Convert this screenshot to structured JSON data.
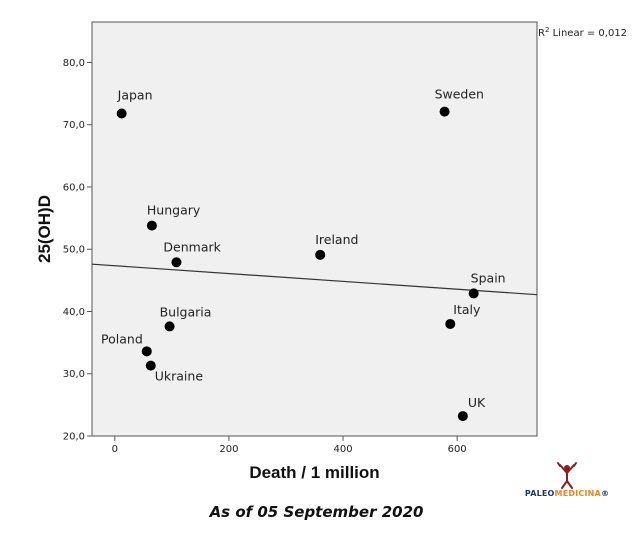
{
  "chart_data": {
    "type": "scatter",
    "xlabel": "Death / 1 million",
    "ylabel": "25(OH)D",
    "xlim": [
      -40,
      740
    ],
    "ylim": [
      20,
      86.5
    ],
    "x_ticks": [
      {
        "value": 0,
        "label": "0"
      },
      {
        "value": 200,
        "label": "200"
      },
      {
        "value": 400,
        "label": "400"
      },
      {
        "value": 600,
        "label": "600"
      }
    ],
    "y_ticks": [
      {
        "value": 20,
        "label": "20,0"
      },
      {
        "value": 30,
        "label": "30,0"
      },
      {
        "value": 40,
        "label": "40,0"
      },
      {
        "value": 50,
        "label": "50,0"
      },
      {
        "value": 60,
        "label": "60,0"
      },
      {
        "value": 70,
        "label": "70,0"
      },
      {
        "value": 80,
        "label": "80,0"
      }
    ],
    "points": [
      {
        "label": "Japan",
        "x": 12,
        "y": 71.8
      },
      {
        "label": "Sweden",
        "x": 578,
        "y": 72.1
      },
      {
        "label": "Hungary",
        "x": 65,
        "y": 53.8
      },
      {
        "label": "Denmark",
        "x": 108,
        "y": 47.9
      },
      {
        "label": "Ireland",
        "x": 360,
        "y": 49.1
      },
      {
        "label": "Spain",
        "x": 629,
        "y": 42.9
      },
      {
        "label": "Italy",
        "x": 588,
        "y": 38.0
      },
      {
        "label": "Bulgaria",
        "x": 96,
        "y": 37.6
      },
      {
        "label": "Poland",
        "x": 56,
        "y": 33.6
      },
      {
        "label": "Ukraine",
        "x": 63,
        "y": 31.3
      },
      {
        "label": "UK",
        "x": 610,
        "y": 23.2
      }
    ],
    "fit_line": {
      "x": [
        -40,
        740
      ],
      "y": [
        47.6,
        42.7
      ]
    },
    "r2_label": {
      "prefix": "R",
      "sup": "2",
      "suffix": " Linear = 0,012"
    },
    "grid": false,
    "legend": "none"
  },
  "caption": "As of 05 September 2020",
  "logo": {
    "part1": "PALEO",
    "part2": "MEDICINA",
    "mark": "®",
    "colors": {
      "primary": "#1a3a6b",
      "accent": "#e2892b"
    }
  },
  "colors": {
    "plot_bg": "#f0f0f0",
    "marker": "#000000",
    "fit_line": "#333333"
  }
}
